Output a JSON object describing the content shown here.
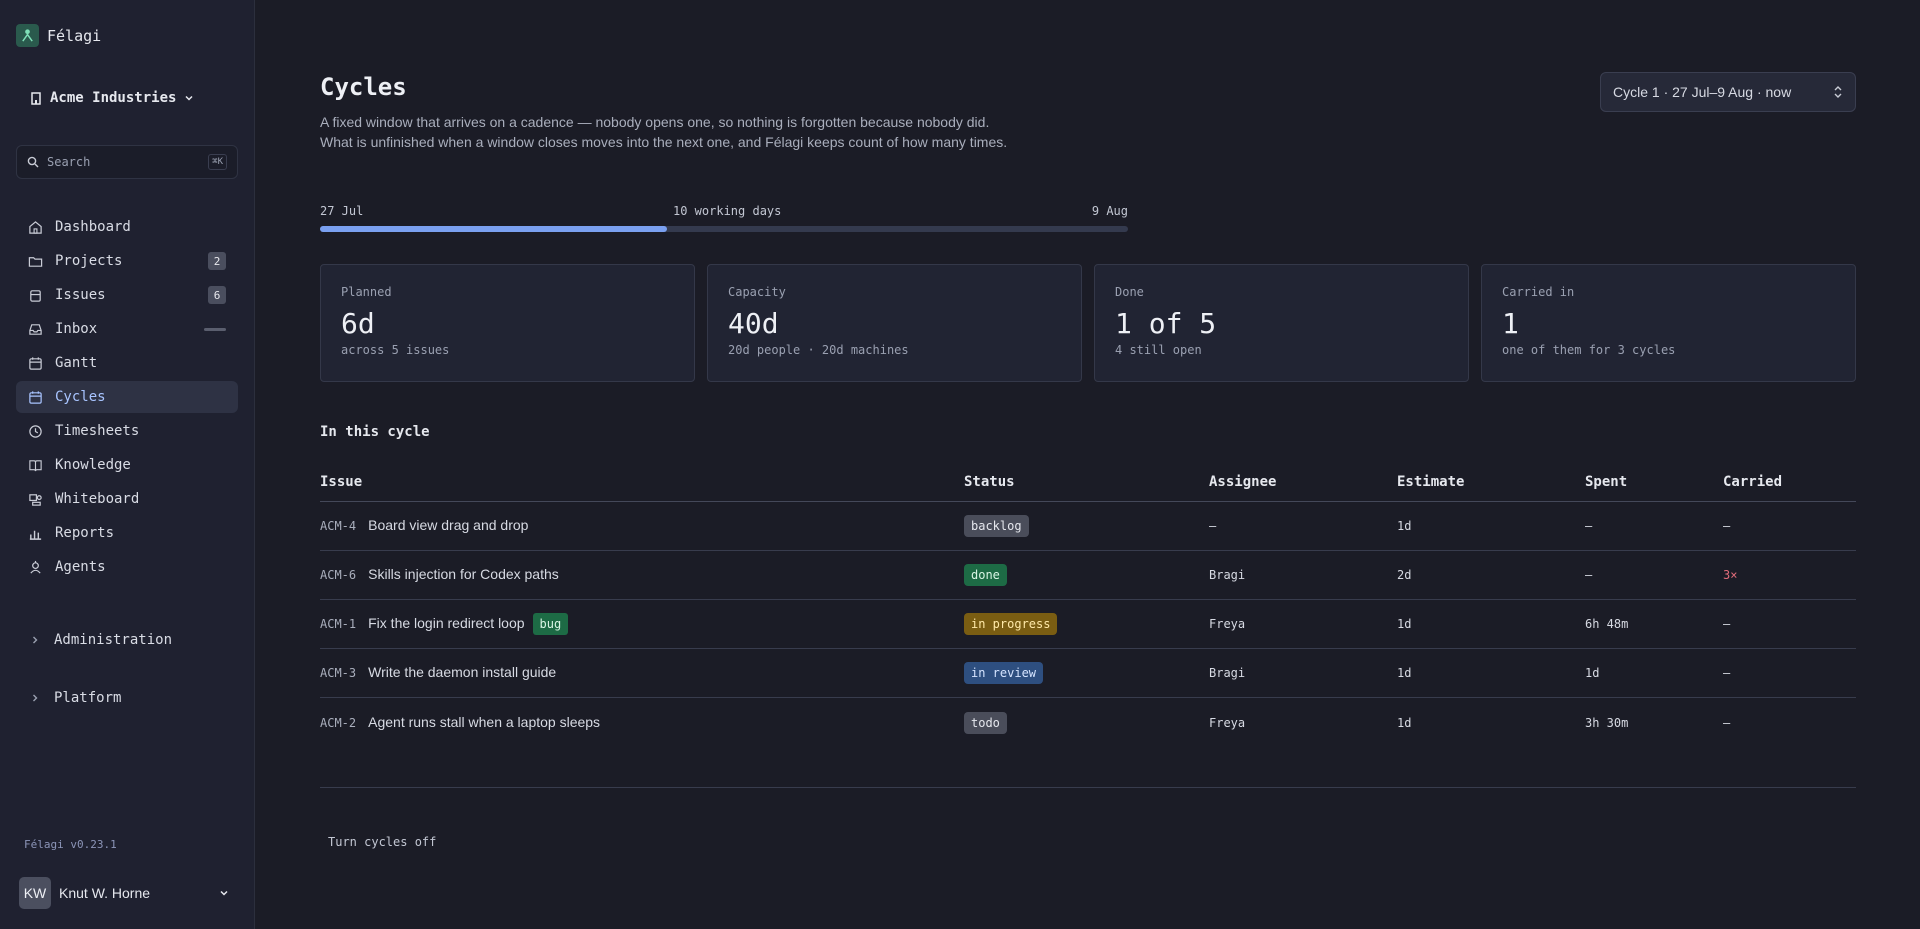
{
  "app": {
    "name": "Félagi",
    "version": "Félagi v0.23.1"
  },
  "org": {
    "name": "Acme Industries"
  },
  "search": {
    "placeholder": "Search",
    "shortcut": "⌘K"
  },
  "nav": [
    {
      "label": "Dashboard",
      "icon": "home-icon",
      "count": ""
    },
    {
      "label": "Projects",
      "icon": "folder-icon",
      "count": "2"
    },
    {
      "label": "Issues",
      "icon": "stack-icon",
      "count": "6"
    },
    {
      "label": "Inbox",
      "icon": "inbox-icon",
      "count": ""
    },
    {
      "label": "Gantt",
      "icon": "calendar-icon",
      "count": ""
    },
    {
      "label": "Cycles",
      "icon": "calendar-icon",
      "count": ""
    },
    {
      "label": "Timesheets",
      "icon": "clock-icon",
      "count": ""
    },
    {
      "label": "Knowledge",
      "icon": "book-icon",
      "count": ""
    },
    {
      "label": "Whiteboard",
      "icon": "whiteboard-icon",
      "count": ""
    },
    {
      "label": "Reports",
      "icon": "bar-chart-icon",
      "count": ""
    },
    {
      "label": "Agents",
      "icon": "agent-icon",
      "count": ""
    }
  ],
  "sections": {
    "administration": "Administration",
    "platform": "Platform"
  },
  "user": {
    "initials": "KW",
    "name": "Knut W. Horne"
  },
  "page": {
    "title": "Cycles",
    "description": "A fixed window that arrives on a cadence — nobody opens one, so nothing is forgotten because nobody did. What is unfinished when a window closes moves into the next one, and Félagi keeps count of how many times.",
    "cycle_select": "Cycle 1 · 27 Jul–9 Aug · now"
  },
  "timeline": {
    "start": "27 Jul",
    "middle": "10 working days",
    "end": "9 Aug",
    "progress": 0.43
  },
  "cards": [
    {
      "label": "Planned",
      "value": "6d",
      "sub": "across 5 issues"
    },
    {
      "label": "Capacity",
      "value": "40d",
      "sub": "20d people · 20d machines"
    },
    {
      "label": "Done",
      "value": "1 of 5",
      "sub": "4 still open"
    },
    {
      "label": "Carried in",
      "value": "1",
      "sub": "one of them for 3 cycles"
    }
  ],
  "section_title": "In this cycle",
  "table": {
    "headers": [
      "Issue",
      "Status",
      "Assignee",
      "Estimate",
      "Spent",
      "Carried"
    ],
    "rows": [
      {
        "key": "ACM-4",
        "title": "Board view drag and drop",
        "tag": "",
        "status": "backlog",
        "assignee": "—",
        "estimate": "1d",
        "spent": "—",
        "carried": "—"
      },
      {
        "key": "ACM-6",
        "title": "Skills injection for Codex paths",
        "tag": "",
        "status": "done",
        "assignee": "Bragi",
        "estimate": "2d",
        "spent": "—",
        "carried": "3×"
      },
      {
        "key": "ACM-1",
        "title": "Fix the login redirect loop",
        "tag": "bug",
        "status": "in progress",
        "assignee": "Freya",
        "estimate": "1d",
        "spent": "6h 48m",
        "carried": "—"
      },
      {
        "key": "ACM-3",
        "title": "Write the daemon install guide",
        "tag": "",
        "status": "in review",
        "assignee": "Bragi",
        "estimate": "1d",
        "spent": "1d",
        "carried": "—"
      },
      {
        "key": "ACM-2",
        "title": "Agent runs stall when a laptop sleeps",
        "tag": "",
        "status": "todo",
        "assignee": "Freya",
        "estimate": "1d",
        "spent": "3h 30m",
        "carried": "—"
      }
    ]
  },
  "status_colors": {
    "backlog": {
      "bg": "#4a4d5a",
      "fg": "#e6e8ee"
    },
    "done": {
      "bg": "#1d6b45",
      "fg": "#d8f5e4"
    },
    "in progress": {
      "bg": "#7a5d12",
      "fg": "#ffe9a8"
    },
    "in review": {
      "bg": "#2e4f80",
      "fg": "#d5e4ff"
    },
    "todo": {
      "bg": "#4a4d5a",
      "fg": "#e6e8ee"
    }
  },
  "tag_color": {
    "bg": "#1d6b45",
    "fg": "#d8f5e4"
  },
  "footer": {
    "turn_off": "Turn cycles off"
  }
}
